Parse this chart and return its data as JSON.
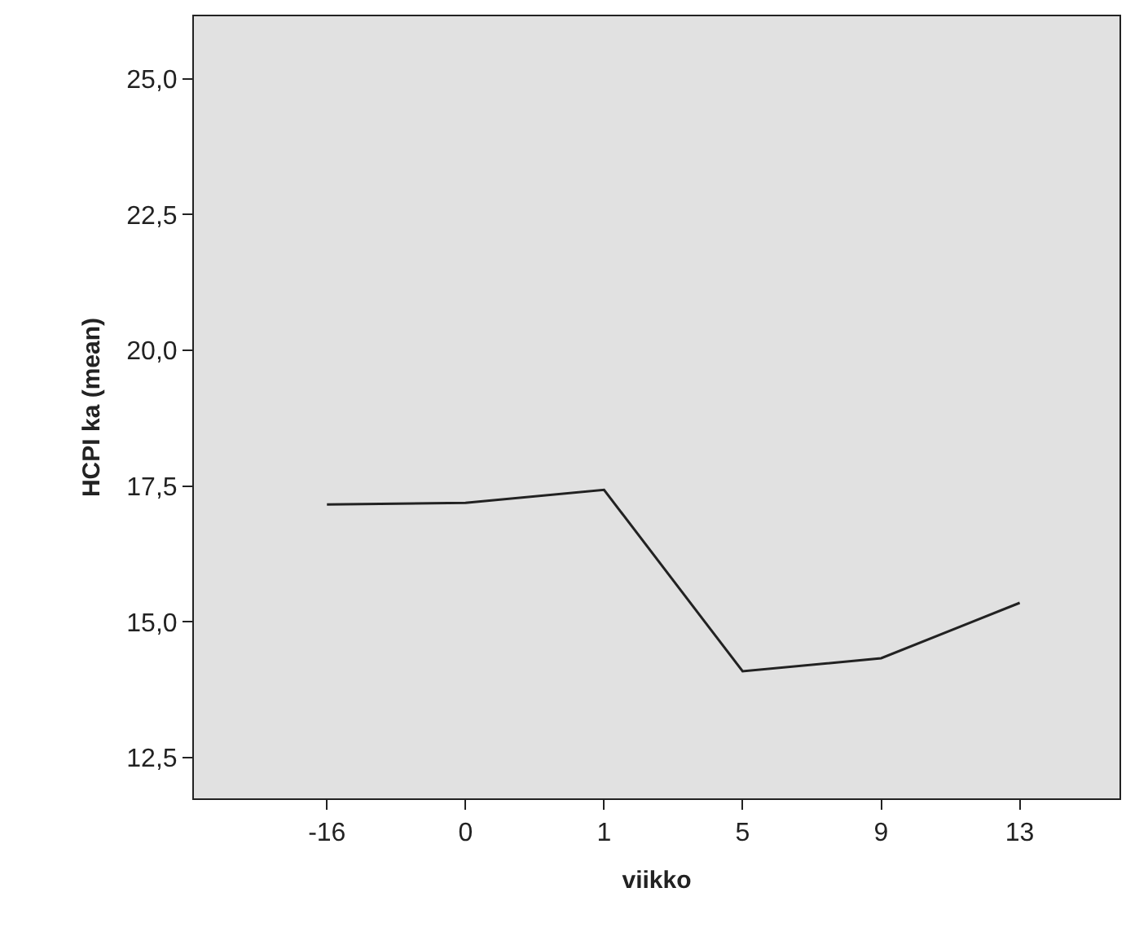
{
  "chart_data": {
    "type": "line",
    "xlabel": "viikko",
    "ylabel": "HCPI ka (mean)",
    "categories": [
      "-16",
      "0",
      "1",
      "5",
      "9",
      "13"
    ],
    "series": [
      {
        "color": "#222222",
        "values": [
          17.16,
          17.19,
          17.43,
          14.09,
          14.33,
          15.35
        ]
      }
    ],
    "ylim": [
      11.75,
      26.15
    ],
    "yticks": [
      {
        "value": 12.5,
        "label": "12,5"
      },
      {
        "value": 15,
        "label": "15,0"
      },
      {
        "value": 17.5,
        "label": "17,5"
      },
      {
        "value": 20,
        "label": "20,0"
      },
      {
        "value": 22.5,
        "label": "22,5"
      },
      {
        "value": 25,
        "label": "25,0"
      }
    ],
    "grid": false,
    "marker": "none",
    "line_style": "solid"
  }
}
